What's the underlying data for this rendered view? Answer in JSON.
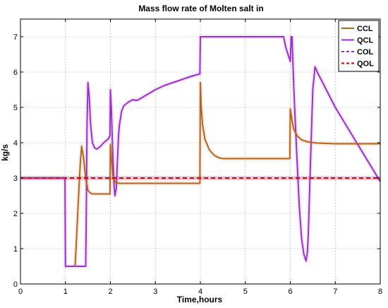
{
  "chart_data": {
    "type": "line",
    "title": "Mass flow rate of Molten salt in",
    "xlabel": "Time,hours",
    "ylabel": "kg/s",
    "xlim": [
      0,
      8
    ],
    "ylim": [
      0,
      7.5
    ],
    "xticks": [
      0,
      1,
      2,
      3,
      4,
      5,
      6,
      7,
      8
    ],
    "yticks": [
      0,
      1,
      2,
      3,
      4,
      5,
      6,
      7
    ],
    "grid": true,
    "legend_position": "top-right",
    "series": [
      {
        "name": "CCL",
        "color": "#b5651d",
        "style": "solid",
        "x": [
          1.21,
          1.22,
          1.3,
          1.33,
          1.36,
          1.4,
          1.45,
          1.5,
          1.55,
          1.6,
          1.8,
          1.99,
          2.0,
          2.02,
          2.05,
          2.1,
          2.15,
          2.2,
          2.5,
          3.0,
          3.5,
          3.99,
          4.0,
          4.02,
          4.05,
          4.1,
          4.2,
          4.3,
          4.4,
          4.5,
          4.6,
          5.0,
          5.5,
          5.99,
          6.0,
          6.03,
          6.07,
          6.15,
          6.25,
          6.4,
          6.6,
          6.8,
          7.0,
          7.5,
          8.0
        ],
        "y": [
          0.5,
          0.6,
          2.7,
          3.4,
          3.9,
          3.6,
          3.0,
          2.65,
          2.58,
          2.55,
          2.55,
          2.55,
          3.95,
          3.6,
          3.1,
          2.88,
          2.86,
          2.85,
          2.85,
          2.85,
          2.85,
          2.85,
          5.7,
          5.0,
          4.5,
          4.1,
          3.8,
          3.65,
          3.58,
          3.55,
          3.55,
          3.55,
          3.55,
          3.55,
          4.95,
          4.7,
          4.4,
          4.2,
          4.08,
          4.02,
          3.99,
          3.98,
          3.97,
          3.97,
          3.97
        ]
      },
      {
        "name": "QCL",
        "color": "#9b30d0",
        "style": "solid",
        "x": [
          0.0,
          0.5,
          0.99,
          1.0,
          1.45,
          1.46,
          1.48,
          1.5,
          1.53,
          1.56,
          1.6,
          1.65,
          1.7,
          1.78,
          1.85,
          1.9,
          1.95,
          1.99,
          2.0,
          2.02,
          2.05,
          2.08,
          2.1,
          2.13,
          2.16,
          2.18,
          2.2,
          2.25,
          2.3,
          2.4,
          2.5,
          2.55,
          2.6,
          2.8,
          3.0,
          3.2,
          3.5,
          3.8,
          3.99,
          4.0,
          4.5,
          5.0,
          5.5,
          5.85,
          5.9,
          5.95,
          6.0,
          6.02,
          6.04,
          6.06,
          6.08,
          6.1,
          6.15,
          6.2,
          6.25,
          6.3,
          6.35,
          6.38,
          6.4,
          6.45,
          6.5,
          6.55,
          6.6,
          6.8,
          7.0,
          7.5,
          8.0
        ],
        "y": [
          3.0,
          3.0,
          3.0,
          0.5,
          0.5,
          1.5,
          4.5,
          5.7,
          5.3,
          4.5,
          4.0,
          3.85,
          3.82,
          3.9,
          4.0,
          4.05,
          4.1,
          4.2,
          5.5,
          5.0,
          3.8,
          2.8,
          2.5,
          2.7,
          3.6,
          4.2,
          4.5,
          4.9,
          5.05,
          5.15,
          5.22,
          5.2,
          5.2,
          5.35,
          5.5,
          5.62,
          5.75,
          5.88,
          5.95,
          7.0,
          7.0,
          7.0,
          7.0,
          7.0,
          6.7,
          6.5,
          6.3,
          7.0,
          7.0,
          6.2,
          5.5,
          4.9,
          3.5,
          2.2,
          1.3,
          0.85,
          0.65,
          0.9,
          1.4,
          3.5,
          5.5,
          6.15,
          6.0,
          5.5,
          5.0,
          3.95,
          2.9
        ]
      },
      {
        "name": "COL",
        "color": "#9b30d0",
        "style": "dashed",
        "x": [
          0,
          8
        ],
        "y": [
          3.0,
          3.0
        ]
      },
      {
        "name": "QOL",
        "color": "#cc0000",
        "style": "dashed",
        "x": [
          0,
          8
        ],
        "y": [
          3.0,
          3.0
        ]
      }
    ]
  }
}
